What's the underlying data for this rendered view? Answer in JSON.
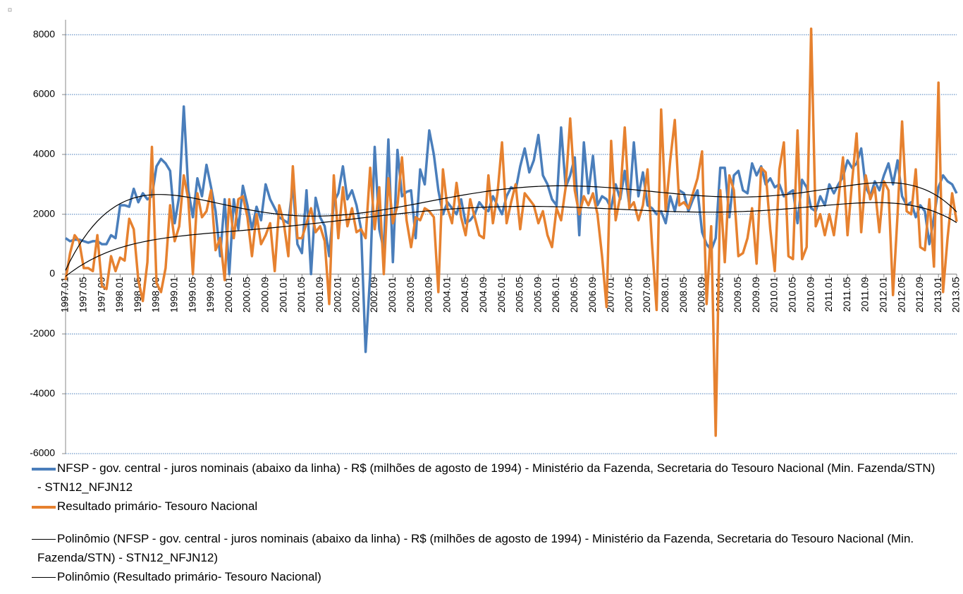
{
  "chart_data": {
    "type": "line",
    "categories": [
      "1997.01",
      null,
      null,
      null,
      "1997.05",
      null,
      null,
      null,
      "1997.09",
      null,
      null,
      null,
      "1998.01",
      null,
      null,
      null,
      "1998.05",
      null,
      null,
      null,
      "1998.09",
      null,
      null,
      null,
      "1999.01",
      null,
      null,
      null,
      "1999.05",
      null,
      null,
      null,
      "1999.09",
      null,
      null,
      null,
      "2000.01",
      null,
      null,
      null,
      "2000.05",
      null,
      null,
      null,
      "2000.09",
      null,
      null,
      null,
      "2001.01",
      null,
      null,
      null,
      "2001.05",
      null,
      null,
      null,
      "2001.09",
      null,
      null,
      null,
      "2002.01",
      null,
      null,
      null,
      "2002.05",
      null,
      null,
      null,
      "2002.09",
      null,
      null,
      null,
      "2003.01",
      null,
      null,
      null,
      "2003.05",
      null,
      null,
      null,
      "2003.09",
      null,
      null,
      null,
      "2004.01",
      null,
      null,
      null,
      "2004.05",
      null,
      null,
      null,
      "2004.09",
      null,
      null,
      null,
      "2005.01",
      null,
      null,
      null,
      "2005.05",
      null,
      null,
      null,
      "2005.09",
      null,
      null,
      null,
      "2006.01",
      null,
      null,
      null,
      "2006.05",
      null,
      null,
      null,
      "2006.09",
      null,
      null,
      null,
      "2007.01",
      null,
      null,
      null,
      "2007.05",
      null,
      null,
      null,
      "2007.09",
      null,
      null,
      null,
      "2008.01",
      null,
      null,
      null,
      "2008.05",
      null,
      null,
      null,
      "2008.09",
      null,
      null,
      null,
      "2009.01",
      null,
      null,
      null,
      "2009.05",
      null,
      null,
      null,
      "2009.09",
      null,
      null,
      null,
      "2010.01",
      null,
      null,
      null,
      "2010.05",
      null,
      null,
      null,
      "2010.09",
      null,
      null,
      null,
      "2011.01",
      null,
      null,
      null,
      "2011.05",
      null,
      null,
      null,
      "2011.09",
      null,
      null,
      null,
      "2012.01",
      null,
      null,
      null,
      "2012.05",
      null,
      null,
      null,
      "2012.09",
      null,
      null,
      null,
      "2013.01",
      null,
      null,
      null,
      "2013.05"
    ],
    "series": [
      {
        "name": "NFSP - gov. central - juros nominais (abaixo da linha) - R$ (milhões de agosto de 1994)  - Ministério da Fazenda, Secretaria do Tesouro Nacional (Min. Fazenda/STN) - STN12_NFJN12",
        "trendline_name": "Polinômio (NFSP - gov. central - juros nominais (abaixo da linha) - R$ (milhões de agosto de 1994)  - Ministério da Fazenda, Secretaria do Tesouro Nacional (Min. Fazenda/STN) - STN12_NFJN12)",
        "trendline_order": 6,
        "color": "#4a7ebb",
        "values": [
          1200,
          1100,
          1150,
          1150,
          1100,
          1050,
          1100,
          1100,
          1000,
          1000,
          1300,
          1200,
          2300,
          2300,
          2250,
          2850,
          2400,
          2700,
          2500,
          2600,
          3600,
          3850,
          3700,
          3450,
          1700,
          2600,
          5600,
          2800,
          1900,
          3200,
          2600,
          3650,
          2900,
          2100,
          600,
          2500,
          0,
          2500,
          1500,
          2950,
          2300,
          1500,
          2250,
          1800,
          3000,
          2500,
          2200,
          1900,
          1800,
          1700,
          3000,
          1000,
          700,
          2800,
          0,
          2550,
          1900,
          1600,
          600,
          2400,
          2700,
          3600,
          2500,
          2800,
          2300,
          1500,
          -2600,
          0,
          4250,
          1500,
          800,
          4500,
          400,
          4150,
          2600,
          2750,
          2800,
          1200,
          3500,
          3000,
          4800,
          4000,
          2800,
          2000,
          2400,
          2200,
          2000,
          2500,
          1700,
          1800,
          2000,
          2400,
          2200,
          2100,
          2600,
          2300,
          2000,
          2600,
          2900,
          2800,
          3600,
          4200,
          3400,
          3800,
          4650,
          3300,
          3000,
          2500,
          2300,
          4900,
          2900,
          3300,
          3900,
          1300,
          4400,
          2700,
          3950,
          2300,
          2600,
          2500,
          2200,
          3000,
          2500,
          3450,
          2300,
          4400,
          2600,
          3400,
          2300,
          2200,
          2000,
          2100,
          1700,
          2600,
          2100,
          2800,
          2700,
          2100,
          2500,
          2800,
          1400,
          1000,
          800,
          1200,
          3550,
          3550,
          1900,
          3300,
          3450,
          2800,
          2700,
          3700,
          3300,
          3600,
          3000,
          3200,
          2900,
          3000,
          2600,
          2700,
          2800,
          1700,
          3150,
          2900,
          2200,
          2100,
          2600,
          2300,
          3000,
          2700,
          3000,
          3250,
          3800,
          3550,
          3700,
          4200,
          2900,
          2600,
          3100,
          2800,
          3300,
          3700,
          3000,
          3800,
          2600,
          2300,
          2400,
          1900,
          2300,
          2100,
          1000,
          1900,
          2900,
          3300,
          3100,
          3000,
          2700
        ]
      },
      {
        "name": "Resultado primário- Tesouro Nacional",
        "trendline_name": "Polinômio (Resultado primário- Tesouro Nacional)",
        "trendline_order": 6,
        "color": "#e6812f",
        "values": [
          -200,
          700,
          1300,
          1100,
          200,
          200,
          100,
          1300,
          -400,
          -500,
          600,
          100,
          550,
          450,
          1850,
          1500,
          -200,
          -900,
          400,
          4250,
          -300,
          -600,
          200,
          2300,
          1100,
          1600,
          3300,
          2500,
          0,
          2700,
          1900,
          2100,
          2800,
          800,
          1200,
          -200,
          2500,
          1200,
          2500,
          2600,
          1900,
          600,
          2000,
          1000,
          1300,
          1700,
          100,
          2300,
          1700,
          600,
          3600,
          1200,
          1200,
          1700,
          2200,
          1400,
          1600,
          1100,
          -1000,
          3300,
          1200,
          2900,
          1600,
          2200,
          1400,
          1500,
          1200,
          3550,
          1500,
          2900,
          0,
          3200,
          1700,
          2300,
          3900,
          1800,
          900,
          1900,
          1800,
          2200,
          2100,
          1900,
          -600,
          3500,
          2200,
          1700,
          3050,
          1900,
          1300,
          2500,
          1900,
          1300,
          1200,
          3300,
          1700,
          2700,
          4400,
          1700,
          2400,
          3000,
          1500,
          2700,
          2500,
          2300,
          1700,
          2100,
          1300,
          900,
          2200,
          1800,
          2900,
          5200,
          2800,
          2000,
          2600,
          2300,
          2700,
          2000,
          600,
          -1100,
          4450,
          1800,
          2600,
          4900,
          2200,
          2400,
          1800,
          2300,
          3500,
          1000,
          -1200,
          5500,
          2100,
          3800,
          5150,
          2300,
          2400,
          2200,
          2700,
          3200,
          4100,
          -1000,
          1600,
          -5400,
          2800,
          400,
          3300,
          2800,
          600,
          700,
          1200,
          2200,
          350,
          3550,
          3400,
          1500,
          100,
          3500,
          4400,
          600,
          500,
          4800,
          500,
          900,
          8200,
          1600,
          2000,
          1300,
          2000,
          1300,
          2500,
          3900,
          1300,
          3100,
          4700,
          1400,
          3300,
          2500,
          2900,
          1400,
          3100,
          2800,
          -700,
          2000,
          5100,
          2100,
          2000,
          3500,
          900,
          800,
          2500,
          250,
          6400,
          -600,
          1200,
          2700,
          1750
        ]
      }
    ],
    "ylim": [
      -6000,
      8500
    ],
    "yticks": [
      -6000,
      -4000,
      -2000,
      0,
      2000,
      4000,
      6000,
      8000
    ],
    "grid": true
  }
}
